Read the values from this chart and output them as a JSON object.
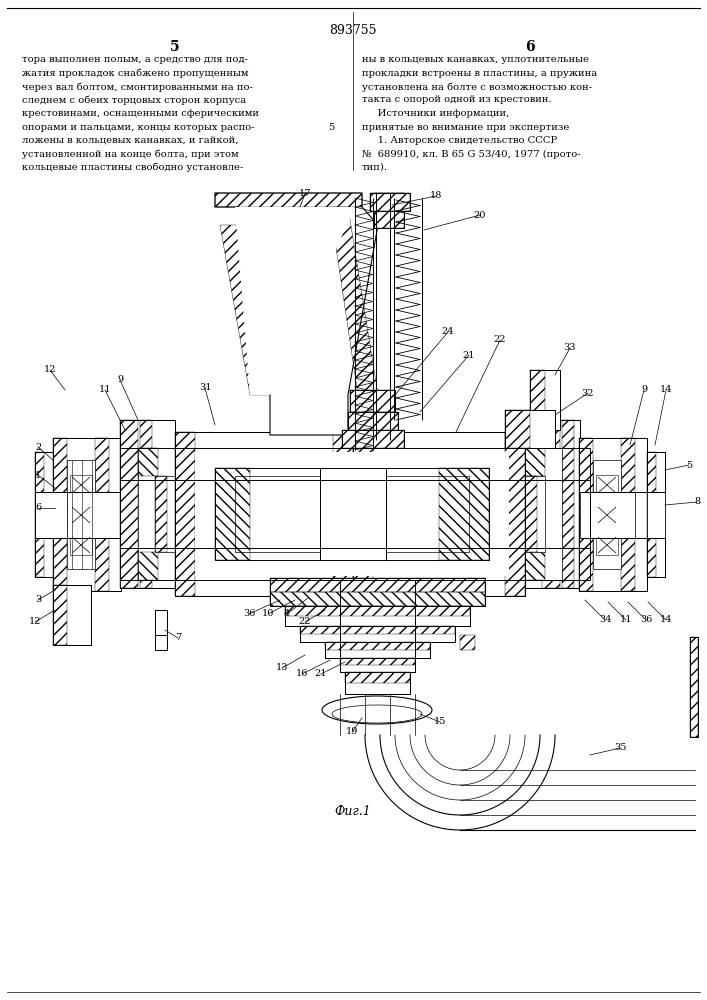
{
  "patent_number": "893755",
  "page_left": "5",
  "page_right": "6",
  "text_left": "тора выполнен полым, а средство для под-\nжатия прокладок снабжено пропущенным\nчерез вал болтом, смонтированными на по-\nследнем с обеих торцовых сторон корпуса\nкрестовинами, оснащенными сферическими\nопорами и пальцами, концы которых распо-\nложены в кольцевых канавках, и гайкой,\nустановленной на конце болта, при этом\nкольцевые пластины свободно установле-",
  "text_right": "ны в кольцевых канавках, уплотнительные\nпрокладки встроены в пластины, а пружина\nустановлена на болте с возможностью кон-\nтакта с опорой одной из крестовин.\n    Источники информации,\nпринятые во внимание при экспертизе\n    1. Авторское свидетельство СССР\n№  689910, кл. В 65 G 53/40, 1977 (прото-\nтип).",
  "fig_caption": "Фиг.1",
  "bg_color": "#ffffff",
  "text_color": "#000000",
  "line_color": "#1a1a1a"
}
